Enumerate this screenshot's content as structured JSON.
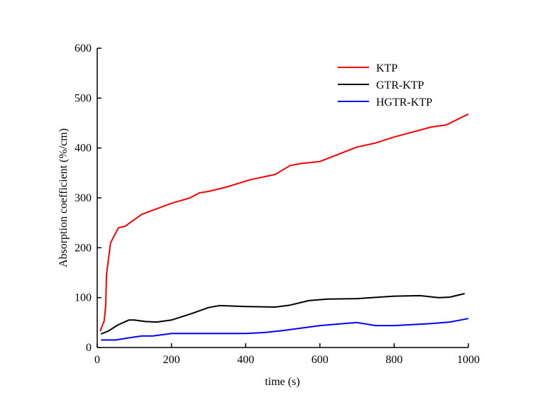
{
  "chart_data": {
    "type": "line",
    "title": "",
    "xlabel": "time (s)",
    "ylabel": "Absorption coefficient (%/cm)",
    "xlim": [
      0,
      1000
    ],
    "ylim": [
      0,
      600
    ],
    "xticks": [
      0,
      200,
      400,
      600,
      800,
      1000
    ],
    "yticks": [
      0,
      100,
      200,
      300,
      400,
      500,
      600
    ],
    "grid": false,
    "legend_position": "top-right",
    "series": [
      {
        "name": "KTP",
        "color": "#ff0000",
        "x": [
          8,
          19,
          23,
          25,
          36,
          57,
          75,
          120,
          200,
          250,
          275,
          300,
          350,
          410,
          480,
          520,
          550,
          600,
          700,
          750,
          800,
          900,
          940,
          1000
        ],
        "y": [
          33,
          54,
          85,
          147,
          210,
          240,
          243,
          267,
          289,
          300,
          310,
          313,
          322,
          336,
          347,
          365,
          369,
          373,
          402,
          410,
          422,
          442,
          446,
          468
        ]
      },
      {
        "name": "GTR-KTP",
        "color": "#000000",
        "x": [
          10,
          30,
          55,
          85,
          100,
          130,
          160,
          200,
          250,
          300,
          330,
          400,
          480,
          520,
          570,
          620,
          700,
          800,
          870,
          920,
          950,
          990
        ],
        "y": [
          27,
          33,
          45,
          55,
          55,
          52,
          51,
          55,
          67,
          80,
          84,
          82,
          81,
          85,
          94,
          97,
          98,
          103,
          104,
          100,
          101,
          108
        ]
      },
      {
        "name": "HGTR-KTP",
        "color": "#0000ff",
        "x": [
          10,
          50,
          100,
          120,
          150,
          200,
          400,
          450,
          500,
          600,
          650,
          700,
          750,
          800,
          900,
          950,
          1000
        ],
        "y": [
          15,
          15,
          21,
          23,
          23,
          28,
          28,
          30,
          34,
          44,
          47,
          50,
          44,
          44,
          48,
          51,
          58
        ]
      }
    ]
  }
}
